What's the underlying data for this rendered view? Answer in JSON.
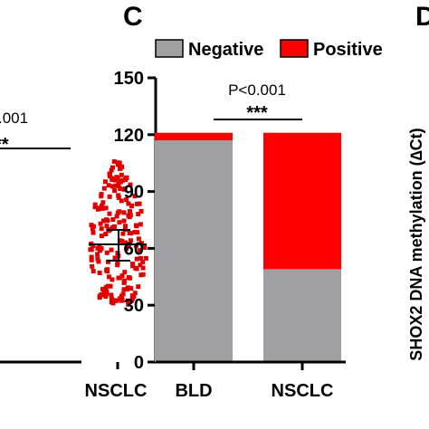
{
  "panels": {
    "left": {
      "p_value_text": ".001",
      "significance_text": "**",
      "category_label": "NSCLC",
      "point_color": "#e00000"
    },
    "center": {
      "panel_letter": "C",
      "legend_position": "top",
      "p_value_text": "P<0.001",
      "significance_text": "***"
    },
    "right": {
      "panel_letter": "D",
      "ylabel": "SHOX2 DNA methylation (∆Ct)"
    }
  },
  "chart_data": {
    "type": "bar",
    "stacked": true,
    "categories": [
      "BLD",
      "NSCLC"
    ],
    "series": [
      {
        "name": "Negative",
        "values": [
          117,
          49
        ],
        "color": "#a0a0a2"
      },
      {
        "name": "Positive",
        "values": [
          4,
          72
        ],
        "color": "#ff0000"
      }
    ],
    "yticks": [
      "0",
      "30",
      "60",
      "90",
      "120",
      "150"
    ],
    "ylim": [
      0,
      150
    ],
    "grid": false,
    "title": "",
    "xlabel": "",
    "ylabel": ""
  }
}
